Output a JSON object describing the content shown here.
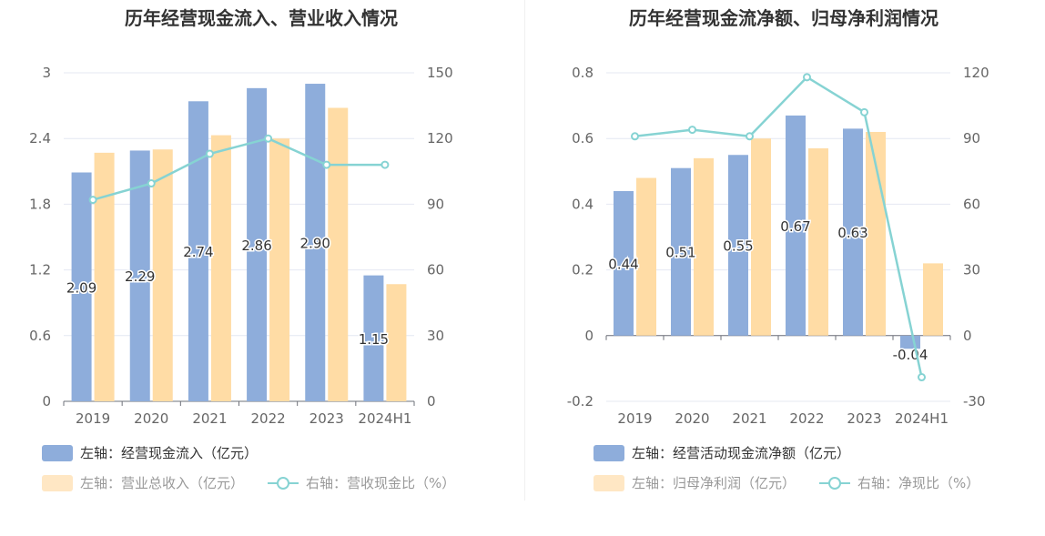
{
  "colors": {
    "bar_primary": "#8eaddb",
    "bar_secondary": "#ffdca5",
    "line": "#86d3d3",
    "axis_text": "#666666",
    "grid": "#e4e8f2",
    "title": "#333333",
    "data_label": "#333333"
  },
  "legend_icons": {
    "bar_primary": "blue-bar-swatch-icon",
    "bar_secondary": "orange-bar-swatch-icon",
    "line": "line-circle-marker-icon"
  },
  "left_chart": {
    "title": "历年经营现金流入、营业收入情况",
    "legend": {
      "series1": "左轴：经营现金流入（亿元）",
      "series2": "左轴：营业总收入（亿元）",
      "series3": "右轴：营收现金比（%）"
    }
  },
  "right_chart": {
    "title": "历年经营现金流净额、归母净利润情况",
    "legend": {
      "series1": "左轴：经营活动现金流净额（亿元）",
      "series2": "左轴：归母净利润（亿元）",
      "series3": "右轴：净现比（%）"
    }
  },
  "chart_data": [
    {
      "type": "bar",
      "title": "历年经营现金流入、营业收入情况",
      "categories": [
        "2019",
        "2020",
        "2021",
        "2022",
        "2023",
        "2024H1"
      ],
      "left_axis": {
        "ylim": [
          0,
          3
        ],
        "ticks": [
          "0",
          "0.6",
          "1.2",
          "1.8",
          "2.4",
          "3"
        ]
      },
      "right_axis": {
        "ylim": [
          0,
          150
        ],
        "ticks": [
          "0",
          "30",
          "60",
          "90",
          "120",
          "150"
        ]
      },
      "grid": true,
      "legend_position": "bottom",
      "series": [
        {
          "name": "左轴：经营现金流入（亿元）",
          "type": "bar",
          "axis": "left",
          "values": [
            2.09,
            2.29,
            2.74,
            2.86,
            2.9,
            1.15
          ],
          "labels": [
            "2.09",
            "2.29",
            "2.74",
            "2.86",
            "2.90",
            "1.15"
          ]
        },
        {
          "name": "左轴：营业总收入（亿元）",
          "type": "bar",
          "axis": "left",
          "values": [
            2.27,
            2.3,
            2.43,
            2.4,
            2.68,
            1.07
          ]
        },
        {
          "name": "右轴：营收现金比（%）",
          "type": "line",
          "axis": "right",
          "values": [
            92,
            99.5,
            113,
            120,
            108,
            108
          ]
        }
      ]
    },
    {
      "type": "bar",
      "title": "历年经营现金流净额、归母净利润情况",
      "categories": [
        "2019",
        "2020",
        "2021",
        "2022",
        "2023",
        "2024H1"
      ],
      "left_axis": {
        "ylim": [
          -0.2,
          0.8
        ],
        "ticks": [
          "-0.2",
          "0",
          "0.2",
          "0.4",
          "0.6",
          "0.8"
        ]
      },
      "right_axis": {
        "ylim": [
          -30,
          120
        ],
        "ticks": [
          "-30",
          "0",
          "30",
          "60",
          "90",
          "120"
        ]
      },
      "grid": true,
      "legend_position": "bottom",
      "series": [
        {
          "name": "左轴：经营活动现金流净额（亿元）",
          "type": "bar",
          "axis": "left",
          "values": [
            0.44,
            0.51,
            0.55,
            0.67,
            0.63,
            -0.04
          ],
          "labels": [
            "0.44",
            "0.51",
            "0.55",
            "0.67",
            "0.63",
            "-0.04"
          ]
        },
        {
          "name": "左轴：归母净利润（亿元）",
          "type": "bar",
          "axis": "left",
          "values": [
            0.48,
            0.54,
            0.6,
            0.57,
            0.62,
            0.22
          ]
        },
        {
          "name": "右轴：净现比（%）",
          "type": "line",
          "axis": "right",
          "values": [
            91,
            94,
            91,
            118,
            102,
            -19
          ]
        }
      ]
    }
  ]
}
